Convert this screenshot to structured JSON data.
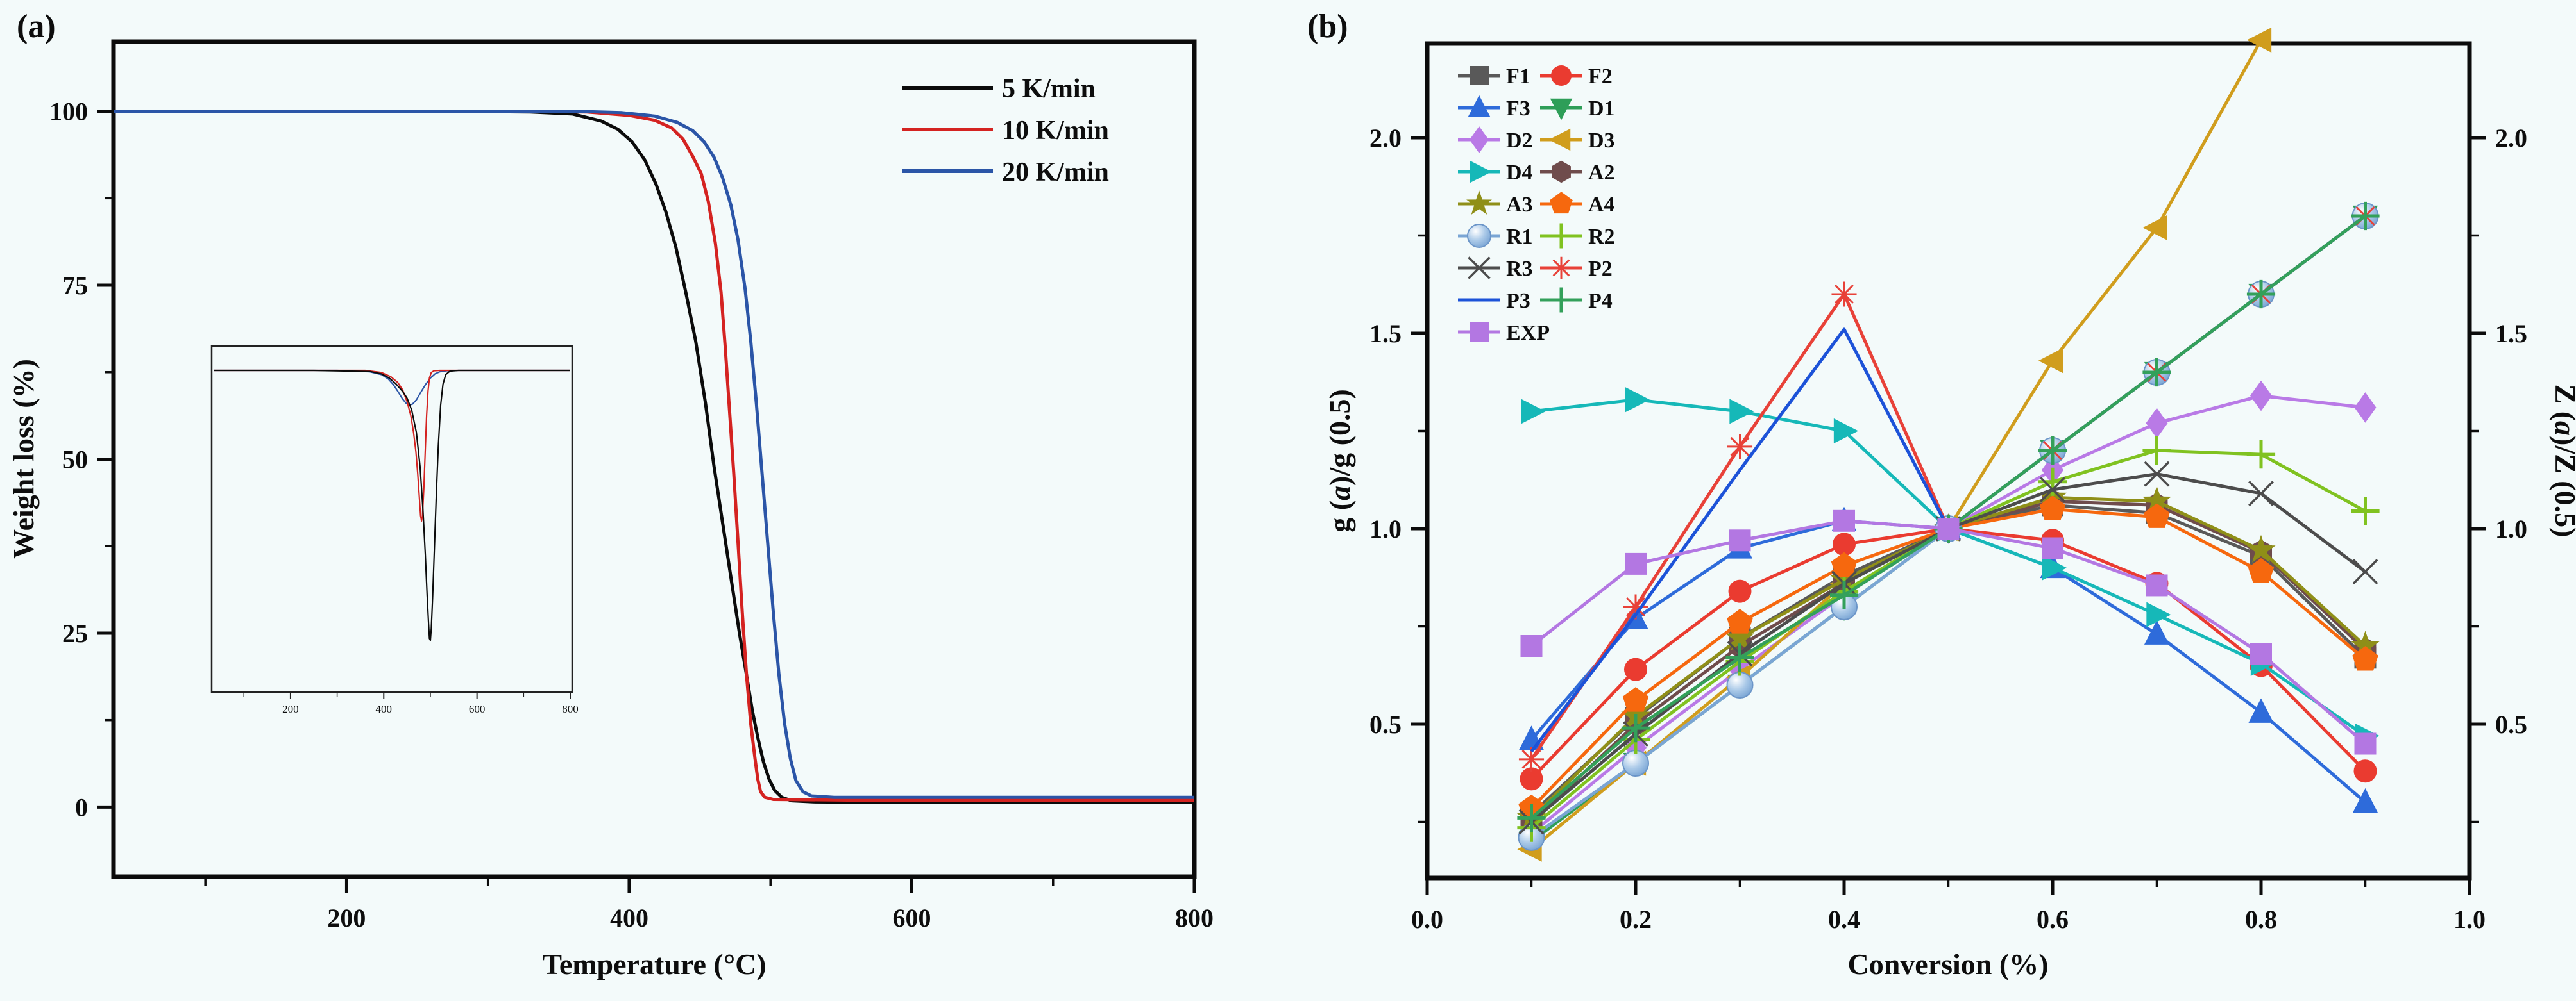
{
  "figure": {
    "background": "#f3fafa"
  },
  "chart_data": [
    {
      "id": "panel-a",
      "type": "line",
      "tag": "(a)",
      "xlabel": "Temperature (°C)",
      "ylabel": "Weight loss (%)",
      "xlim": [
        35,
        800
      ],
      "ylim": [
        -10,
        110
      ],
      "xticks": [
        200,
        400,
        600,
        800
      ],
      "xminor": [
        100,
        300,
        500,
        700
      ],
      "yticks": [
        0,
        25,
        50,
        75,
        100
      ],
      "yminor": [
        12.5,
        37.5,
        62.5,
        87.5
      ],
      "grid": false,
      "legend_position": "top-right-inside",
      "legend": [
        {
          "label": "5 K/min",
          "color": "#0b0b0b"
        },
        {
          "label": "10 K/min",
          "color": "#d42321"
        },
        {
          "label": "20 K/min",
          "color": "#2b55a7"
        }
      ],
      "series": [
        {
          "name": "5 K/min",
          "color": "#0b0b0b",
          "points": [
            [
              35,
              100
            ],
            [
              150,
              100
            ],
            [
              260,
              100
            ],
            [
              330,
              99.9
            ],
            [
              360,
              99.6
            ],
            [
              380,
              98.6
            ],
            [
              392,
              97.4
            ],
            [
              402,
              95.6
            ],
            [
              411,
              93
            ],
            [
              419,
              89.5
            ],
            [
              426,
              85.5
            ],
            [
              433,
              80.5
            ],
            [
              440,
              74
            ],
            [
              447,
              67
            ],
            [
              454,
              58
            ],
            [
              460,
              49
            ],
            [
              466,
              41
            ],
            [
              472,
              33
            ],
            [
              478,
              25
            ],
            [
              483,
              19
            ],
            [
              487,
              14
            ],
            [
              491,
              10
            ],
            [
              495,
              6.5
            ],
            [
              499,
              4
            ],
            [
              503,
              2.4
            ],
            [
              508,
              1.4
            ],
            [
              515,
              0.9
            ],
            [
              530,
              0.75
            ],
            [
              560,
              0.7
            ],
            [
              800,
              0.7
            ]
          ]
        },
        {
          "name": "10 K/min",
          "color": "#d42321",
          "points": [
            [
              35,
              100
            ],
            [
              200,
              100
            ],
            [
              320,
              100
            ],
            [
              370,
              99.9
            ],
            [
              400,
              99.4
            ],
            [
              418,
              98.7
            ],
            [
              430,
              97.6
            ],
            [
              438,
              96
            ],
            [
              445,
              93.5
            ],
            [
              451,
              91
            ],
            [
              456,
              87
            ],
            [
              461,
              81
            ],
            [
              465,
              74
            ],
            [
              468,
              66
            ],
            [
              471,
              57
            ],
            [
              474,
              48
            ],
            [
              477,
              38
            ],
            [
              480,
              28
            ],
            [
              483,
              19
            ],
            [
              486,
              12
            ],
            [
              489,
              7
            ],
            [
              491,
              4
            ],
            [
              493,
              2.2
            ],
            [
              496,
              1.4
            ],
            [
              502,
              1.1
            ],
            [
              560,
              1
            ],
            [
              800,
              1
            ]
          ]
        },
        {
          "name": "20 K/min",
          "color": "#2b55a7",
          "points": [
            [
              35,
              100
            ],
            [
              250,
              100
            ],
            [
              360,
              100
            ],
            [
              395,
              99.8
            ],
            [
              418,
              99.3
            ],
            [
              434,
              98.4
            ],
            [
              445,
              97.2
            ],
            [
              453,
              95.6
            ],
            [
              460,
              93.4
            ],
            [
              466,
              90.5
            ],
            [
              472,
              86.5
            ],
            [
              477,
              81.5
            ],
            [
              482,
              74.5
            ],
            [
              486,
              67
            ],
            [
              490,
              58
            ],
            [
              494,
              48
            ],
            [
              498,
              38
            ],
            [
              502,
              28
            ],
            [
              506,
              19
            ],
            [
              510,
              12
            ],
            [
              514,
              7
            ],
            [
              518,
              3.8
            ],
            [
              523,
              2.2
            ],
            [
              529,
              1.6
            ],
            [
              545,
              1.4
            ],
            [
              800,
              1.4
            ]
          ]
        }
      ],
      "inset": {
        "description": "DTG derivative curves",
        "xlim": [
          35,
          800
        ],
        "xticks": [
          200,
          400,
          600,
          800
        ],
        "xminor": [
          100,
          300,
          500,
          700
        ],
        "series": [
          {
            "name": "20 K/min",
            "color": "#2b55a7",
            "points": [
              [
                35,
                0
              ],
              [
                150,
                0
              ],
              [
                300,
                0
              ],
              [
                370,
                0.004
              ],
              [
                395,
                0.012
              ],
              [
                410,
                0.025
              ],
              [
                420,
                0.04
              ],
              [
                430,
                0.06
              ],
              [
                440,
                0.082
              ],
              [
                448,
                0.095
              ],
              [
                455,
                0.1
              ],
              [
                462,
                0.097
              ],
              [
                470,
                0.085
              ],
              [
                480,
                0.062
              ],
              [
                490,
                0.04
              ],
              [
                500,
                0.022
              ],
              [
                510,
                0.01
              ],
              [
                520,
                0.004
              ],
              [
                535,
                0.001
              ],
              [
                560,
                0
              ],
              [
                800,
                0
              ]
            ]
          },
          {
            "name": "10 K/min",
            "color": "#d42321",
            "points": [
              [
                35,
                0
              ],
              [
                200,
                0
              ],
              [
                360,
                0
              ],
              [
                395,
                0.006
              ],
              [
                415,
                0.018
              ],
              [
                430,
                0.035
              ],
              [
                440,
                0.055
              ],
              [
                450,
                0.09
              ],
              [
                458,
                0.13
              ],
              [
                464,
                0.18
              ],
              [
                469,
                0.235
              ],
              [
                473,
                0.3
              ],
              [
                476,
                0.36
              ],
              [
                479,
                0.42
              ],
              [
                481,
                0.435
              ],
              [
                483,
                0.42
              ],
              [
                486,
                0.34
              ],
              [
                489,
                0.23
              ],
              [
                492,
                0.13
              ],
              [
                495,
                0.06
              ],
              [
                498,
                0.022
              ],
              [
                502,
                0.006
              ],
              [
                508,
                0.001
              ],
              [
                520,
                0
              ],
              [
                800,
                0
              ]
            ]
          },
          {
            "name": "5 K/min",
            "color": "#0b0b0b",
            "points": [
              [
                35,
                0
              ],
              [
                250,
                0
              ],
              [
                370,
                0.003
              ],
              [
                395,
                0.01
              ],
              [
                412,
                0.022
              ],
              [
                427,
                0.04
              ],
              [
                440,
                0.06
              ],
              [
                450,
                0.08
              ],
              [
                460,
                0.115
              ],
              [
                470,
                0.18
              ],
              [
                478,
                0.28
              ],
              [
                484,
                0.4
              ],
              [
                489,
                0.53
              ],
              [
                493,
                0.65
              ],
              [
                496,
                0.73
              ],
              [
                498,
                0.775
              ],
              [
                500,
                0.78
              ],
              [
                502,
                0.745
              ],
              [
                505,
                0.65
              ],
              [
                509,
                0.5
              ],
              [
                513,
                0.35
              ],
              [
                517,
                0.22
              ],
              [
                522,
                0.1
              ],
              [
                527,
                0.04
              ],
              [
                533,
                0.012
              ],
              [
                542,
                0.002
              ],
              [
                560,
                0
              ],
              [
                800,
                0
              ]
            ]
          }
        ]
      }
    },
    {
      "id": "panel-b",
      "type": "scatter-line",
      "tag": "(b)",
      "xlabel": "Conversion (%)",
      "ylabel_left_parts": [
        "g (",
        "a",
        ")/g (0.5)"
      ],
      "ylabel_right_parts": [
        "Z (",
        "a",
        ")/Z (0.5)"
      ],
      "xlim": [
        0,
        1
      ],
      "ylim": [
        0.107,
        2.241
      ],
      "xticks": [
        0.0,
        0.2,
        0.4,
        0.6,
        0.8,
        1.0
      ],
      "xminor": [
        0.1,
        0.3,
        0.5,
        0.7,
        0.9
      ],
      "yticks": [
        0.5,
        1.0,
        1.5,
        2.0
      ],
      "yminor": [
        0.25,
        0.75,
        1.25,
        1.75
      ],
      "grid": false,
      "legend_position": "top-left-inside-two-columns",
      "x": [
        0.1,
        0.2,
        0.3,
        0.4,
        0.5,
        0.6,
        0.7,
        0.8,
        0.9
      ],
      "series": [
        {
          "name": "F1",
          "marker": "square",
          "color": "#595959",
          "values": [
            0.27,
            0.515,
            0.72,
            0.88,
            1.0,
            1.06,
            1.04,
            0.93,
            0.67
          ]
        },
        {
          "name": "F2",
          "marker": "circle",
          "color": "#ea3b30",
          "values": [
            0.36,
            0.64,
            0.84,
            0.96,
            1.0,
            0.97,
            0.86,
            0.65,
            0.38
          ]
        },
        {
          "name": "F3",
          "marker": "triangle-up",
          "color": "#2e6bda",
          "values": [
            0.46,
            0.77,
            0.95,
            1.02,
            1.0,
            0.9,
            0.73,
            0.53,
            0.3
          ]
        },
        {
          "name": "D1",
          "marker": "triangle-down",
          "color": "#2e9e58",
          "values": [
            0.2,
            0.4,
            0.6,
            0.8,
            1.0,
            1.2,
            1.4,
            1.6,
            1.8
          ]
        },
        {
          "name": "D2",
          "marker": "diamond",
          "color": "#b97ae6",
          "values": [
            0.22,
            0.44,
            0.64,
            0.83,
            1.0,
            1.15,
            1.27,
            1.34,
            1.31
          ]
        },
        {
          "name": "D3",
          "marker": "triangle-left",
          "color": "#d09d1d",
          "values": [
            0.18,
            0.4,
            0.62,
            0.86,
            1.0,
            1.43,
            1.77,
            2.25,
            null
          ]
        },
        {
          "name": "D4",
          "marker": "triangle-right",
          "color": "#16b8b8",
          "values": [
            1.3,
            1.33,
            1.3,
            1.25,
            1.0,
            0.9,
            0.78,
            0.655,
            0.47
          ]
        },
        {
          "name": "A2",
          "marker": "hexagon",
          "color": "#6f4c4c",
          "values": [
            0.25,
            0.5,
            0.7,
            0.86,
            1.0,
            1.07,
            1.06,
            0.94,
            0.69
          ]
        },
        {
          "name": "A3",
          "marker": "star",
          "color": "#8f8f18",
          "values": [
            0.26,
            0.52,
            0.72,
            0.87,
            1.0,
            1.08,
            1.07,
            0.945,
            0.7
          ]
        },
        {
          "name": "A4",
          "marker": "pentagon",
          "color": "#f6680e",
          "values": [
            0.285,
            0.56,
            0.76,
            0.905,
            1.0,
            1.05,
            1.03,
            0.89,
            0.665
          ]
        },
        {
          "name": "R1",
          "marker": "sphere",
          "color": "#7aa5d4",
          "values": [
            0.21,
            0.4,
            0.6,
            0.8,
            1.0,
            1.2,
            1.4,
            1.6,
            1.8
          ]
        },
        {
          "name": "R2",
          "marker": "plus",
          "color": "#80c220",
          "values": [
            0.235,
            0.46,
            0.66,
            0.84,
            1.0,
            1.12,
            1.2,
            1.19,
            1.045
          ]
        },
        {
          "name": "R3",
          "marker": "x",
          "color": "#4c4c4c",
          "values": [
            0.25,
            0.475,
            0.68,
            0.86,
            1.0,
            1.1,
            1.14,
            1.09,
            0.89
          ]
        },
        {
          "name": "P2",
          "marker": "asterisk",
          "color": "#e84138",
          "values": [
            0.41,
            0.8,
            1.21,
            1.6,
            1.0,
            1.2,
            1.4,
            1.6,
            1.8
          ]
        },
        {
          "name": "P3",
          "marker": "none",
          "color": "#1c52d8",
          "values": [
            0.43,
            0.78,
            1.15,
            1.51,
            1.0,
            1.2,
            1.4,
            1.6,
            1.8
          ]
        },
        {
          "name": "P4",
          "marker": "plus",
          "color": "#33a05a",
          "values": [
            0.26,
            0.49,
            0.67,
            0.83,
            1.0,
            1.2,
            1.4,
            1.6,
            1.8
          ]
        },
        {
          "name": "EXP",
          "marker": "square",
          "color": "#b377e2",
          "values": [
            0.7,
            0.91,
            0.97,
            1.02,
            1.0,
            0.95,
            0.855,
            0.68,
            0.45
          ]
        }
      ]
    }
  ]
}
